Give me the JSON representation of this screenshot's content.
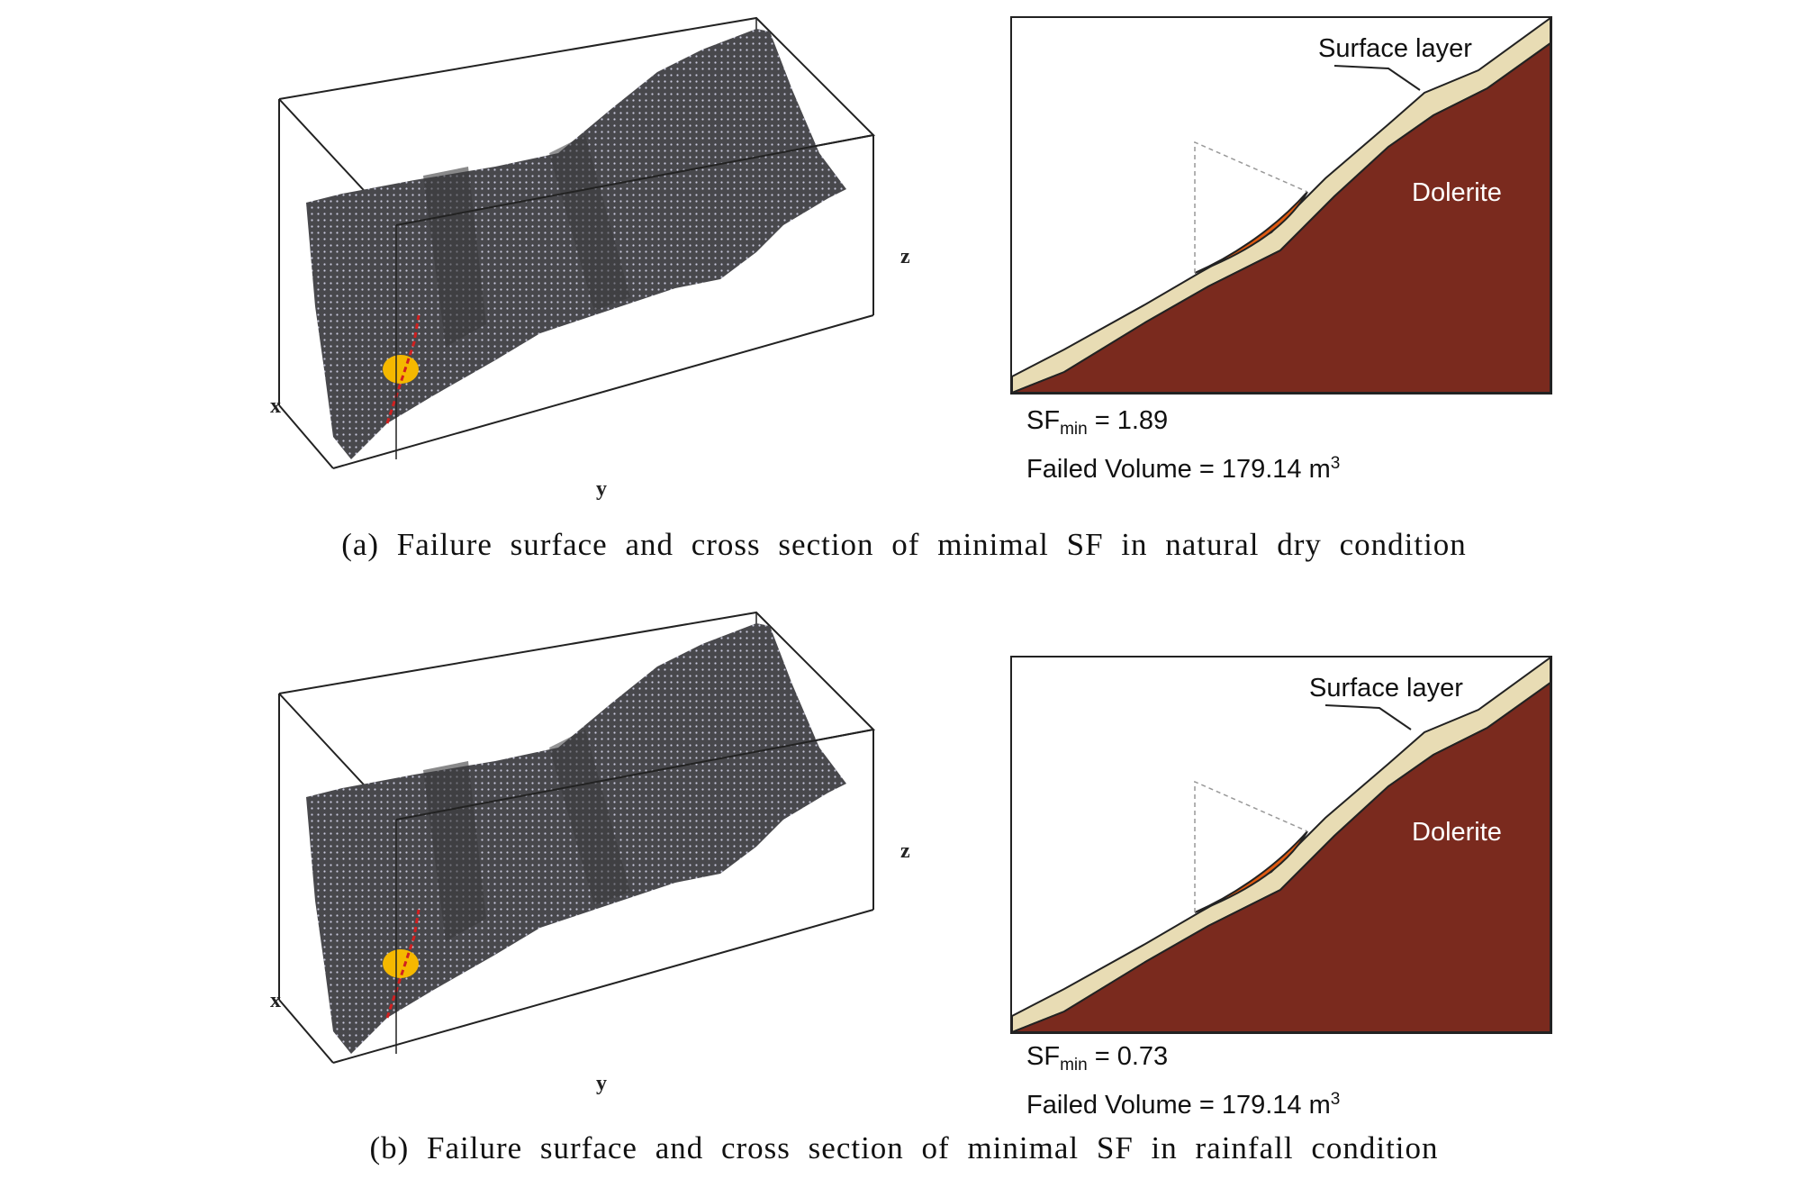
{
  "figure": {
    "panels": [
      {
        "id": "a",
        "axes": {
          "x": "x",
          "y": "y",
          "z": "z"
        },
        "section": {
          "surface_label": "Surface layer",
          "rock_label": "Dolerite"
        },
        "results": {
          "sf_symbol": "SF",
          "sf_subscript": "min",
          "sf_value": "=  1.89",
          "volume_text": "Failed Volume = 179.14 m",
          "volume_exp": "3"
        },
        "caption": "(a) Failure surface and cross section of minimal SF in natural dry condition"
      },
      {
        "id": "b",
        "axes": {
          "x": "x",
          "y": "y",
          "z": "z"
        },
        "section": {
          "surface_label": "Surface layer",
          "rock_label": "Dolerite"
        },
        "results": {
          "sf_symbol": "SF",
          "sf_subscript": "min",
          "sf_value": "= 0.73",
          "volume_text": "Failed Volume = 179.14 m",
          "volume_exp": "3"
        },
        "caption": "(b) Failure surface and cross section of minimal SF in rainfall condition"
      }
    ],
    "colors": {
      "rock": "#7a2a1e",
      "surface_layer": "#e8dcb4",
      "failure_zone": "#e05a10",
      "mesh": "#4a4a4e",
      "mesh_dots": "#c8c8dc",
      "failure_point": "#f5b800"
    }
  }
}
